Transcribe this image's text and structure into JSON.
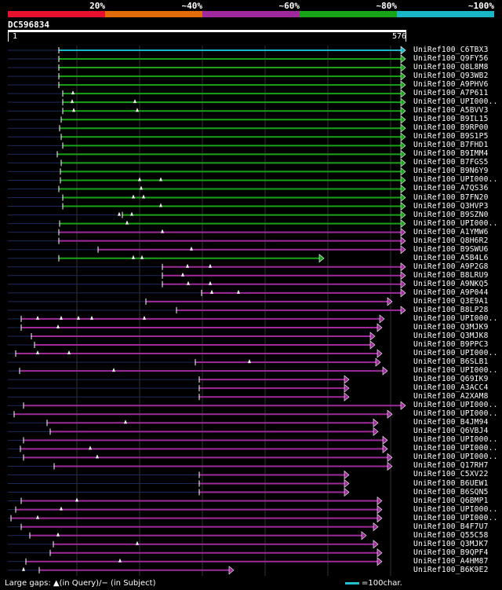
{
  "legend": {
    "colors": [
      "#e8112d",
      "#e36c0a",
      "#9e2a9b",
      "#18a319",
      "#1ab6c6"
    ],
    "labels": [
      "20%",
      "~40%",
      "~60%",
      "~80%",
      "~100%"
    ]
  },
  "query": {
    "name": "DC596834",
    "start": "1",
    "end": "576"
  },
  "hits": [
    {
      "name": "UniRef100_C6TBX3",
      "color": "cyan"
    },
    {
      "name": "UniRef100_Q9FY56",
      "color": "green"
    },
    {
      "name": "UniRef100_Q8L8M8",
      "color": "green"
    },
    {
      "name": "UniRef100_Q93WB2",
      "color": "green"
    },
    {
      "name": "UniRef100_A9PHV6",
      "color": "green"
    },
    {
      "name": "UniRef100_A7P611",
      "color": "green"
    },
    {
      "name": "UniRef100_UPI000..",
      "color": "green"
    },
    {
      "name": "UniRef100_A5BVV3",
      "color": "green"
    },
    {
      "name": "UniRef100_B9IL15",
      "color": "green"
    },
    {
      "name": "UniRef100_B9RP00",
      "color": "green"
    },
    {
      "name": "UniRef100_B9S1P5",
      "color": "green"
    },
    {
      "name": "UniRef100_B7FHD1",
      "color": "green"
    },
    {
      "name": "UniRef100_B9IMM4",
      "color": "green"
    },
    {
      "name": "UniRef100_B7FGS5",
      "color": "green"
    },
    {
      "name": "UniRef100_B9N6Y9",
      "color": "green"
    },
    {
      "name": "UniRef100_UPI000..",
      "color": "green"
    },
    {
      "name": "UniRef100_A7QS36",
      "color": "green"
    },
    {
      "name": "UniRef100_B7FN20",
      "color": "green"
    },
    {
      "name": "UniRef100_Q3HVP3",
      "color": "green"
    },
    {
      "name": "UniRef100_B9SZN0",
      "color": "green"
    },
    {
      "name": "UniRef100_UPI000..",
      "color": "green"
    },
    {
      "name": "UniRef100_A1YMW6",
      "color": "purple"
    },
    {
      "name": "UniRef100_Q8H6R2",
      "color": "purple"
    },
    {
      "name": "UniRef100_B9SWU6",
      "color": "purple"
    },
    {
      "name": "UniRef100_A5B4L6",
      "color": "green"
    },
    {
      "name": "UniRef100_A9P2G8",
      "color": "purple"
    },
    {
      "name": "UniRef100_B8LRU9",
      "color": "purple"
    },
    {
      "name": "UniRef100_A9NKQ5",
      "color": "purple"
    },
    {
      "name": "UniRef100_A9P044",
      "color": "purple"
    },
    {
      "name": "UniRef100_Q3E9A1",
      "color": "purple"
    },
    {
      "name": "UniRef100_B8LP28",
      "color": "purple"
    },
    {
      "name": "UniRef100_UPI000..",
      "color": "purple"
    },
    {
      "name": "UniRef100_Q3MJK9",
      "color": "purple"
    },
    {
      "name": "UniRef100_Q3MJK8",
      "color": "purple"
    },
    {
      "name": "UniRef100_B9PPC3",
      "color": "purple"
    },
    {
      "name": "UniRef100_UPI000..",
      "color": "purple"
    },
    {
      "name": "UniRef100_B6SLB1",
      "color": "purple"
    },
    {
      "name": "UniRef100_UPI000..",
      "color": "purple"
    },
    {
      "name": "UniRef100_Q69IK9",
      "color": "purple"
    },
    {
      "name": "UniRef100_A3ACC4",
      "color": "purple"
    },
    {
      "name": "UniRef100_A2XAM8",
      "color": "purple"
    },
    {
      "name": "UniRef100_UPI000..",
      "color": "purple"
    },
    {
      "name": "UniRef100_UPI000..",
      "color": "purple"
    },
    {
      "name": "UniRef100_B4JM94",
      "color": "purple"
    },
    {
      "name": "UniRef100_Q6VBJ4",
      "color": "purple"
    },
    {
      "name": "UniRef100_UPI000..",
      "color": "purple"
    },
    {
      "name": "UniRef100_UPI000..",
      "color": "purple"
    },
    {
      "name": "UniRef100_UPI000..",
      "color": "purple"
    },
    {
      "name": "UniRef100_Q17RH7",
      "color": "purple"
    },
    {
      "name": "UniRef100_C5XV22",
      "color": "purple"
    },
    {
      "name": "UniRef100_B6UEW1",
      "color": "purple"
    },
    {
      "name": "UniRef100_B6SQN5",
      "color": "purple"
    },
    {
      "name": "UniRef100_Q6BMP1",
      "color": "purple"
    },
    {
      "name": "UniRef100_UPI000..",
      "color": "purple"
    },
    {
      "name": "UniRef100_UPI000..",
      "color": "purple"
    },
    {
      "name": "UniRef100_B4F7U7",
      "color": "purple"
    },
    {
      "name": "UniRef100_Q55C58",
      "color": "purple"
    },
    {
      "name": "UniRef100_Q3MJK7",
      "color": "purple"
    },
    {
      "name": "UniRef100_B9QPF4",
      "color": "purple"
    },
    {
      "name": "UniRef100_A4HM87",
      "color": "purple"
    },
    {
      "name": "UniRef100_B6K9E2",
      "color": "purple"
    }
  ],
  "footer": {
    "gaps_text": "Large gaps: ▲(in Query)/− (in Subject)",
    "scale_text": "=100char."
  }
}
